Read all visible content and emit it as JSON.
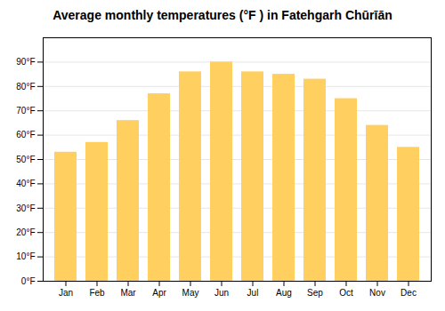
{
  "chart_data": {
    "type": "bar",
    "title": "Average monthly temperatures (°F ) in Fatehgarh Chūrīān",
    "categories": [
      "Jan",
      "Feb",
      "Mar",
      "Apr",
      "May",
      "Jun",
      "Jul",
      "Aug",
      "Sep",
      "Oct",
      "Nov",
      "Dec"
    ],
    "values": [
      53,
      57,
      66,
      77,
      86,
      90,
      86,
      85,
      83,
      75,
      64,
      55
    ],
    "color": "#FFD060",
    "ylim": [
      0,
      100
    ],
    "yticks": [
      {
        "value": 0,
        "label": "0°F"
      },
      {
        "value": 10,
        "label": "10°F"
      },
      {
        "value": 20,
        "label": "20°F"
      },
      {
        "value": 30,
        "label": "30°F"
      },
      {
        "value": 40,
        "label": "40°F"
      },
      {
        "value": 50,
        "label": "50°F"
      },
      {
        "value": 60,
        "label": "60°F"
      },
      {
        "value": 70,
        "label": "70°F"
      },
      {
        "value": 80,
        "label": "80°F"
      },
      {
        "value": 90,
        "label": "90°F"
      }
    ],
    "grid": true
  }
}
